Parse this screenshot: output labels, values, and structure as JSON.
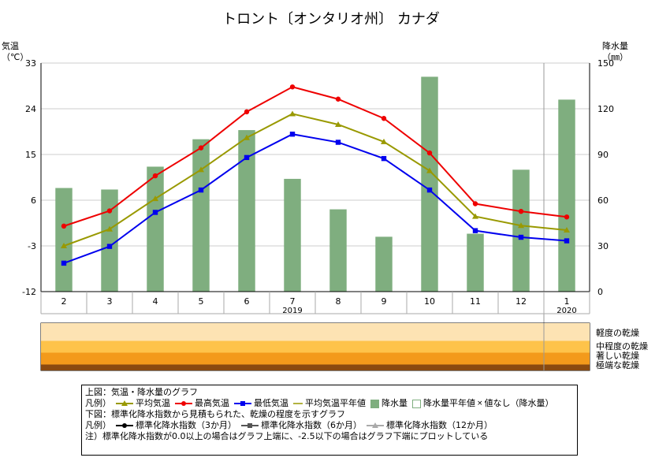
{
  "chart_data": {
    "type": "bar+line",
    "title": "トロント〔オンタリオ州〕 カナダ",
    "left_axis_label": [
      "気温",
      "（℃）"
    ],
    "right_axis_label": [
      "降水量",
      "（㎜）"
    ],
    "categories": [
      "2",
      "3",
      "4",
      "5",
      "6",
      "7",
      "8",
      "9",
      "10",
      "11",
      "12",
      "1"
    ],
    "year_labels": [
      {
        "index": 5,
        "label": "2019"
      },
      {
        "index": 11,
        "label": "2020"
      }
    ],
    "temp_ylim": [
      -12,
      33
    ],
    "temp_ticks": [
      33,
      24,
      15,
      6,
      -3,
      -12
    ],
    "precip_ylim": [
      0,
      150
    ],
    "precip_ticks": [
      150,
      120,
      90,
      60,
      30,
      0
    ],
    "grid": true,
    "series": [
      {
        "name": "降水量",
        "kind": "bar",
        "axis": "right",
        "color": "#7fae7f",
        "values": [
          68,
          67,
          82,
          100,
          106,
          74,
          54,
          36,
          141,
          38,
          80,
          126
        ]
      },
      {
        "name": "平均気温",
        "kind": "line",
        "axis": "left",
        "color": "#999900",
        "marker": "triangle",
        "values": [
          -3.0,
          0.3,
          6.3,
          12.0,
          18.3,
          23.0,
          20.9,
          17.5,
          11.8,
          2.8,
          1.0,
          0.1
        ]
      },
      {
        "name": "最高気温",
        "kind": "line",
        "axis": "left",
        "color": "#ee0000",
        "marker": "circle",
        "values": [
          0.9,
          3.9,
          10.8,
          16.3,
          23.4,
          28.3,
          25.9,
          22.1,
          15.3,
          5.3,
          3.8,
          2.7
        ]
      },
      {
        "name": "最低気温",
        "kind": "line",
        "axis": "left",
        "color": "#0000ee",
        "marker": "square",
        "values": [
          -6.4,
          -3.1,
          3.6,
          8.0,
          14.4,
          19.0,
          17.4,
          14.2,
          8.0,
          0.0,
          -1.3,
          -2.0
        ]
      }
    ],
    "drought_bands": [
      {
        "label": "軽度の乾燥",
        "color": "#fde3b3"
      },
      {
        "label": "中程度の乾燥",
        "color": "#fec34a"
      },
      {
        "label": "著しい乾燥",
        "color": "#f39a1b"
      },
      {
        "label": "極端な乾燥",
        "color": "#8a4a10"
      }
    ],
    "legend": {
      "line1": "上図：気温・降水量のグラフ",
      "prefix": "凡例）",
      "items1": [
        "平均気温",
        "最高気温",
        "最低気温",
        "平均気温平年値",
        "降水量",
        "降水量平年値"
      ],
      "na_symbol": "×",
      "na_text": "値なし（降水量）",
      "line3": "下図：標準化降水指数から見積もられた、乾燥の程度を示すグラフ",
      "items2": [
        "標準化降水指数（3か月）",
        "標準化降水指数（6か月）",
        "標準化降水指数（12か月）"
      ],
      "note": "注）標準化降水指数が0.0以上の場合はグラフ上端に、-2.5以下の場合はグラフ下端にプロットしている"
    }
  }
}
